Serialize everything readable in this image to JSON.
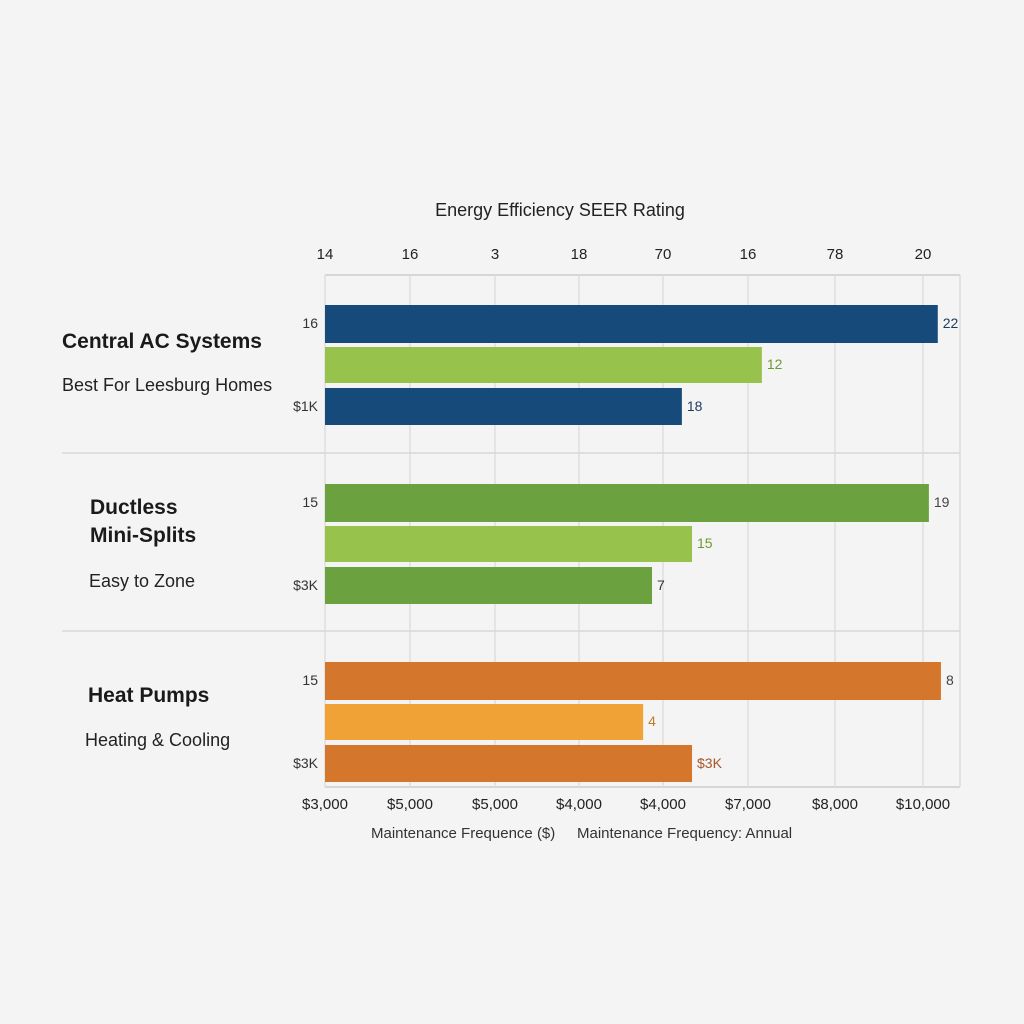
{
  "chart_data": {
    "type": "bar",
    "orientation": "horizontal",
    "title": "Energy Efficiency SEER Rating",
    "top_tick_labels": [
      "14",
      "16",
      "3",
      "18",
      "70",
      "16",
      "78",
      "20"
    ],
    "bottom_tick_labels": [
      "$3,000",
      "$5,000",
      "$5,000",
      "$4,000",
      "$4,000",
      "$7,000",
      "$8,000",
      "$10,000"
    ],
    "xlabels": [
      "Maintenance Frequence ($)",
      "Maintenance Frequency: Annual"
    ],
    "grid": true,
    "groups": [
      {
        "name": "Central AC Systems",
        "name_lines": [
          "Central AC Systems"
        ],
        "subtitle": "Best For Leesburg Homes",
        "bars": [
          {
            "tick": "16",
            "label": "22",
            "fraction": 0.965,
            "color": "#164a7b",
            "label_color": "#1d3b5e"
          },
          {
            "tick": "",
            "label": "12",
            "fraction": 0.688,
            "color": "#97c24b",
            "label_color": "#6f9a2e"
          },
          {
            "tick": "$1K",
            "label": "18",
            "fraction": 0.562,
            "color": "#164a7b",
            "label_color": "#1d3b5e"
          }
        ]
      },
      {
        "name": "Ductless Mini-Splits",
        "name_lines": [
          "Ductless",
          "Mini-Splits"
        ],
        "subtitle": "Easy to Zone",
        "bars": [
          {
            "tick": "15",
            "label": "19",
            "fraction": 0.951,
            "color": "#6ba23f",
            "label_color": "#444444"
          },
          {
            "tick": "",
            "label": "15",
            "fraction": 0.578,
            "color": "#97c24b",
            "label_color": "#6f9a2e"
          },
          {
            "tick": "$3K",
            "label": "7",
            "fraction": 0.515,
            "color": "#6ba23f",
            "label_color": "#333333"
          }
        ]
      },
      {
        "name": "Heat Pumps",
        "name_lines": [
          "Heat Pumps"
        ],
        "subtitle": "Heating & Cooling",
        "bars": [
          {
            "tick": "15",
            "label": "8",
            "fraction": 0.97,
            "color": "#d4772d",
            "label_color": "#444444"
          },
          {
            "tick": "",
            "label": "4",
            "fraction": 0.501,
            "color": "#f0a237",
            "label_color": "#c57a25"
          },
          {
            "tick": "$3K",
            "label": "$3K",
            "fraction": 0.578,
            "color": "#d4772d",
            "label_color": "#a8552a"
          }
        ]
      }
    ]
  }
}
